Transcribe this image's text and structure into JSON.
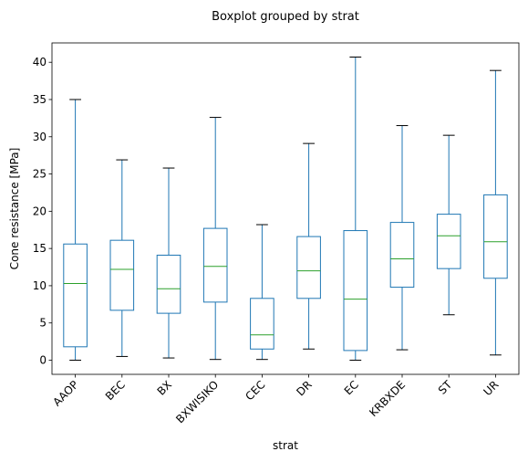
{
  "chart_data": {
    "type": "boxplot",
    "title": "Boxplot grouped by strat",
    "xlabel": "strat",
    "ylabel": "Cone resistance [MPa]",
    "ylim": [
      -1.9,
      42.6
    ],
    "yticks": [
      0,
      5,
      10,
      15,
      20,
      25,
      30,
      35,
      40
    ],
    "grid": false,
    "categories": [
      "AAOP",
      "BEC",
      "BX",
      "BXWISIKO",
      "CEC",
      "DR",
      "EC",
      "KRBXDE",
      "ST",
      "UR"
    ],
    "boxes": [
      {
        "min": 0.0,
        "q1": 1.8,
        "median": 10.3,
        "q3": 15.6,
        "max": 35.0
      },
      {
        "min": 0.5,
        "q1": 6.7,
        "median": 12.2,
        "q3": 16.1,
        "max": 26.9
      },
      {
        "min": 0.3,
        "q1": 6.3,
        "median": 9.6,
        "q3": 14.1,
        "max": 25.8
      },
      {
        "min": 0.1,
        "q1": 7.8,
        "median": 12.6,
        "q3": 17.7,
        "max": 32.6
      },
      {
        "min": 0.1,
        "q1": 1.5,
        "median": 3.4,
        "q3": 8.3,
        "max": 18.2
      },
      {
        "min": 1.5,
        "q1": 8.3,
        "median": 12.0,
        "q3": 16.6,
        "max": 29.1
      },
      {
        "min": 0.0,
        "q1": 1.3,
        "median": 8.2,
        "q3": 17.4,
        "max": 40.7
      },
      {
        "min": 1.4,
        "q1": 9.8,
        "median": 13.6,
        "q3": 18.5,
        "max": 31.5
      },
      {
        "min": 6.1,
        "q1": 12.3,
        "median": 16.7,
        "q3": 19.6,
        "max": 30.2
      },
      {
        "min": 0.7,
        "q1": 11.0,
        "median": 15.9,
        "q3": 22.2,
        "max": 38.9
      }
    ]
  }
}
